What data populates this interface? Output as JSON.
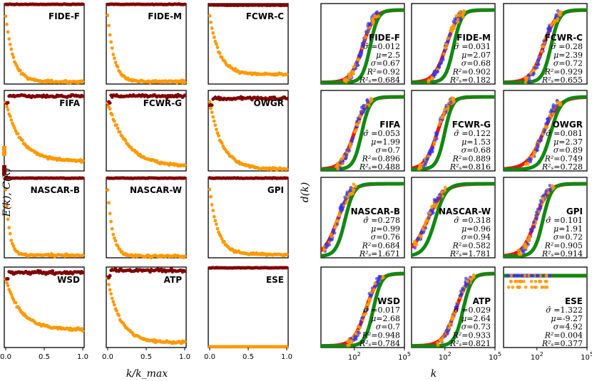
{
  "chart_data": {
    "type": "scatter",
    "title": "",
    "left": {
      "ylabel": "E(k), C(k)",
      "xlabel": "k/k_max",
      "xlim": [
        0,
        1
      ],
      "xticks": [
        "0.0",
        "0.5",
        "1.0"
      ],
      "legend": [
        {
          "name": "C(k)",
          "color": "#800000"
        },
        {
          "name": "E(k)",
          "color": "#ff9900"
        }
      ],
      "panels": [
        {
          "name": "FIDE-F",
          "c_level": 0.99,
          "e_floor": 0.03,
          "e_decay": 10
        },
        {
          "name": "FIDE-M",
          "c_level": 0.99,
          "e_floor": 0.03,
          "e_decay": 12
        },
        {
          "name": "FCWR-C",
          "c_level": 0.98,
          "e_floor": 0.12,
          "e_decay": 8
        },
        {
          "name": "FIFA",
          "c_level": 0.93,
          "e_floor": 0.12,
          "e_decay": 5
        },
        {
          "name": "FCWR-G",
          "c_level": 0.93,
          "e_floor": 0.05,
          "e_decay": 4
        },
        {
          "name": "OWGR",
          "c_level": 0.9,
          "e_floor": 0.02,
          "e_decay": 6
        },
        {
          "name": "NASCAR-B",
          "c_level": 0.99,
          "e_floor": 0.03,
          "e_decay": 20
        },
        {
          "name": "NASCAR-W",
          "c_level": 0.99,
          "e_floor": 0.02,
          "e_decay": 15
        },
        {
          "name": "GPI",
          "c_level": 0.99,
          "e_floor": 0.04,
          "e_decay": 9
        },
        {
          "name": "WSD",
          "c_level": 0.93,
          "e_floor": 0.22,
          "e_decay": 5
        },
        {
          "name": "ATP",
          "c_level": 0.96,
          "e_floor": 0.06,
          "e_decay": 6
        },
        {
          "name": "ESE",
          "c_level": 0.99,
          "e_floor": 0.01,
          "e_decay": 50
        }
      ]
    },
    "right": {
      "ylabel": "d(k)",
      "xlabel": "k",
      "xscale": "log",
      "xlim": [
        1,
        100000
      ],
      "xticks": [
        "10^2",
        "10^5"
      ],
      "curves": [
        {
          "name": "red fit",
          "color": "#ee1111"
        },
        {
          "name": "green fit",
          "color": "#118811"
        }
      ],
      "points": [
        {
          "name": "blue",
          "color": "#3333ee"
        },
        {
          "name": "orange",
          "color": "#ff9900"
        }
      ],
      "panels": [
        {
          "name": "FIDE-F",
          "sigma_hat": "0.012",
          "mu": "2.5",
          "sigma": "0.67",
          "R2": "0.92",
          "R2s": "0.684"
        },
        {
          "name": "FIDE-M",
          "sigma_hat": "0.031",
          "mu": "2.07",
          "sigma": "0.68",
          "R2": "0.902",
          "R2s": "0.182"
        },
        {
          "name": "FCWR-C",
          "sigma_hat": "0.28",
          "mu": "2.39",
          "sigma": "0.72",
          "R2": "0.929",
          "R2s": "0.655"
        },
        {
          "name": "FIFA",
          "sigma_hat": "0.053",
          "mu": "1.99",
          "sigma": "0.7",
          "R2": "0.896",
          "R2s": "0.488"
        },
        {
          "name": "FCWR-G",
          "sigma_hat": "0.122",
          "mu": "1.53",
          "sigma": "0.68",
          "R2": "0.889",
          "R2s": "0.816"
        },
        {
          "name": "OWGR",
          "sigma_hat": "0.081",
          "mu": "2.37",
          "sigma": "0.89",
          "R2": "0.749",
          "R2s": "0.728"
        },
        {
          "name": "NASCAR-B",
          "sigma_hat": "0.278",
          "mu": "0.99",
          "sigma": "0.76",
          "R2": "0.684",
          "R2s": "1.671"
        },
        {
          "name": "NASCAR-W",
          "sigma_hat": "0.318",
          "mu": "0.96",
          "sigma": "0.94",
          "R2": "0.582",
          "R2s": "1.781"
        },
        {
          "name": "GPI",
          "sigma_hat": "0.101",
          "mu": "1.91",
          "sigma": "0.72",
          "R2": "0.905",
          "R2s": "0.914"
        },
        {
          "name": "WSD",
          "sigma_hat": "0.017",
          "mu": "2.68",
          "sigma": "0.7",
          "R2": "0.948",
          "R2s": "0.784"
        },
        {
          "name": "ATP",
          "sigma_hat": "0.029",
          "mu": "2.64",
          "sigma": "0.73",
          "R2": "0.933",
          "R2s": "0.821"
        },
        {
          "name": "ESE",
          "sigma_hat": "1.322",
          "mu": "-9.27",
          "sigma": "4.92",
          "R2": "0.004",
          "R2s": "0.377"
        }
      ]
    }
  }
}
